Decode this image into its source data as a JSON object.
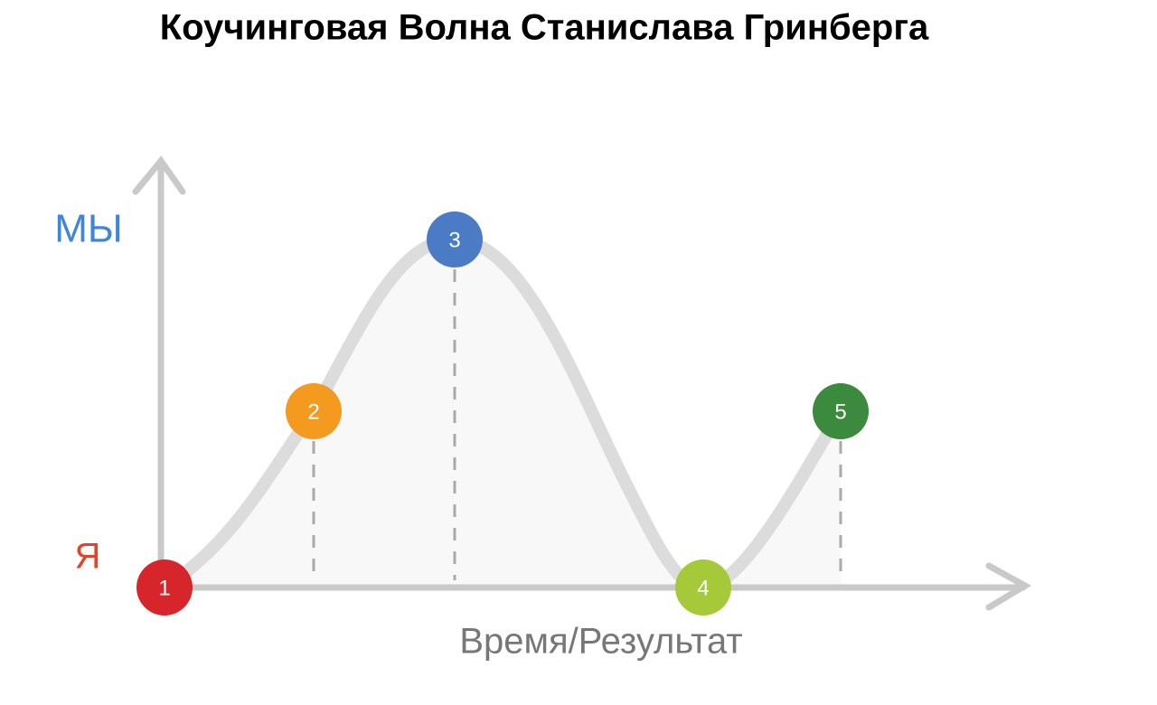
{
  "header": {
    "title": "Коучинговая Волна Станислава Гринберга"
  },
  "y_axis": {
    "top_label": "МЫ",
    "bottom_label": "Я"
  },
  "x_axis": {
    "label": "Время/Результат"
  },
  "nodes": [
    {
      "label": "1"
    },
    {
      "label": "2"
    },
    {
      "label": "3"
    },
    {
      "label": "4"
    },
    {
      "label": "5"
    }
  ]
}
